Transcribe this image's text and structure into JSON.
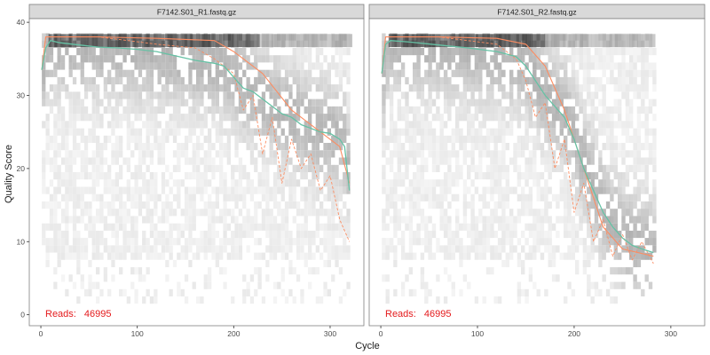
{
  "figure": {
    "xlabel": "Cycle",
    "ylabel": "Quality Score"
  },
  "colors": {
    "strip_bg": "#d9d9d9",
    "panel_border": "#7f7f7f",
    "mean_line": "#66c2a5",
    "quantile_line": "#fc8d62",
    "reads_text": "#e41a1c",
    "heat_light": "#f2f2f2",
    "heat_dark": "#202020"
  },
  "chart_data": [
    {
      "type": "line",
      "panel": "F7142.S01_R1.fastq.gz",
      "title": "F7142.S01_R1.fastq.gz",
      "reads_label": "Reads:",
      "reads_value": "46995",
      "xlim": [
        -12,
        335
      ],
      "ylim": [
        -1.5,
        40.5
      ],
      "xticks": [
        0,
        100,
        200,
        300
      ],
      "yticks": [
        0,
        10,
        20,
        30,
        40
      ],
      "max_cycle": 320,
      "series": [
        {
          "role": "mean",
          "x": [
            1,
            5,
            10,
            20,
            40,
            60,
            80,
            100,
            120,
            140,
            160,
            180,
            190,
            200,
            210,
            220,
            230,
            240,
            250,
            260,
            270,
            280,
            290,
            300,
            310,
            315,
            320
          ],
          "y": [
            33.5,
            36.5,
            37.5,
            37.2,
            36.9,
            36.6,
            36.5,
            36.3,
            36.0,
            35.4,
            34.8,
            34.4,
            34.0,
            32.5,
            31.0,
            30.5,
            29.5,
            28.5,
            27.5,
            27.0,
            26.0,
            25.5,
            25.0,
            24.8,
            24.0,
            23.0,
            17.0
          ]
        },
        {
          "role": "median",
          "x": [
            1,
            5,
            10,
            60,
            120,
            180,
            200,
            230,
            260,
            290,
            310,
            320
          ],
          "y": [
            33.5,
            38.0,
            38.0,
            38.0,
            37.8,
            37.5,
            36.0,
            33.0,
            28.0,
            25.0,
            23.0,
            18.0
          ]
        },
        {
          "role": "q25",
          "x": [
            1,
            5,
            10,
            60,
            120,
            160,
            180,
            200,
            210,
            220,
            230,
            240,
            250,
            260,
            270,
            280,
            290,
            300,
            310,
            320
          ],
          "y": [
            33.5,
            38.0,
            38.0,
            38.0,
            37.0,
            36.5,
            35.0,
            33.0,
            28.0,
            30.0,
            22.0,
            27.0,
            18.0,
            24.0,
            20.0,
            22.0,
            17.0,
            19.0,
            13.0,
            10.0
          ]
        }
      ]
    },
    {
      "type": "line",
      "panel": "F7142.S01_R2.fastq.gz",
      "title": "F7142.S01_R2.fastq.gz",
      "reads_label": "Reads:",
      "reads_value": "46995",
      "xlim": [
        -12,
        335
      ],
      "ylim": [
        -1.5,
        40.5
      ],
      "xticks": [
        0,
        100,
        200,
        300
      ],
      "yticks": [
        0,
        10,
        20,
        30,
        40
      ],
      "max_cycle": 282,
      "series": [
        {
          "role": "mean",
          "x": [
            1,
            5,
            10,
            30,
            60,
            90,
            120,
            140,
            150,
            160,
            170,
            180,
            190,
            200,
            210,
            220,
            230,
            240,
            250,
            260,
            270,
            282
          ],
          "y": [
            33.0,
            37.0,
            37.5,
            37.3,
            36.9,
            36.5,
            36.0,
            35.3,
            34.0,
            32.0,
            30.0,
            28.5,
            27.0,
            24.0,
            20.0,
            17.0,
            14.0,
            12.0,
            10.5,
            9.5,
            9.0,
            8.5
          ]
        },
        {
          "role": "median",
          "x": [
            1,
            5,
            10,
            60,
            120,
            150,
            170,
            190,
            210,
            230,
            250,
            282
          ],
          "y": [
            33.0,
            38.0,
            38.0,
            38.0,
            37.8,
            37.0,
            34.0,
            28.0,
            20.0,
            12.0,
            9.0,
            8.0
          ]
        },
        {
          "role": "q25",
          "x": [
            1,
            5,
            10,
            60,
            120,
            140,
            150,
            160,
            170,
            180,
            190,
            200,
            210,
            220,
            230,
            240,
            250,
            260,
            270,
            282
          ],
          "y": [
            33.0,
            38.0,
            38.0,
            38.0,
            37.0,
            35.0,
            32.0,
            27.0,
            29.0,
            20.0,
            24.0,
            14.0,
            18.0,
            10.0,
            13.0,
            8.0,
            11.0,
            7.5,
            10.0,
            7.0
          ]
        }
      ]
    }
  ]
}
